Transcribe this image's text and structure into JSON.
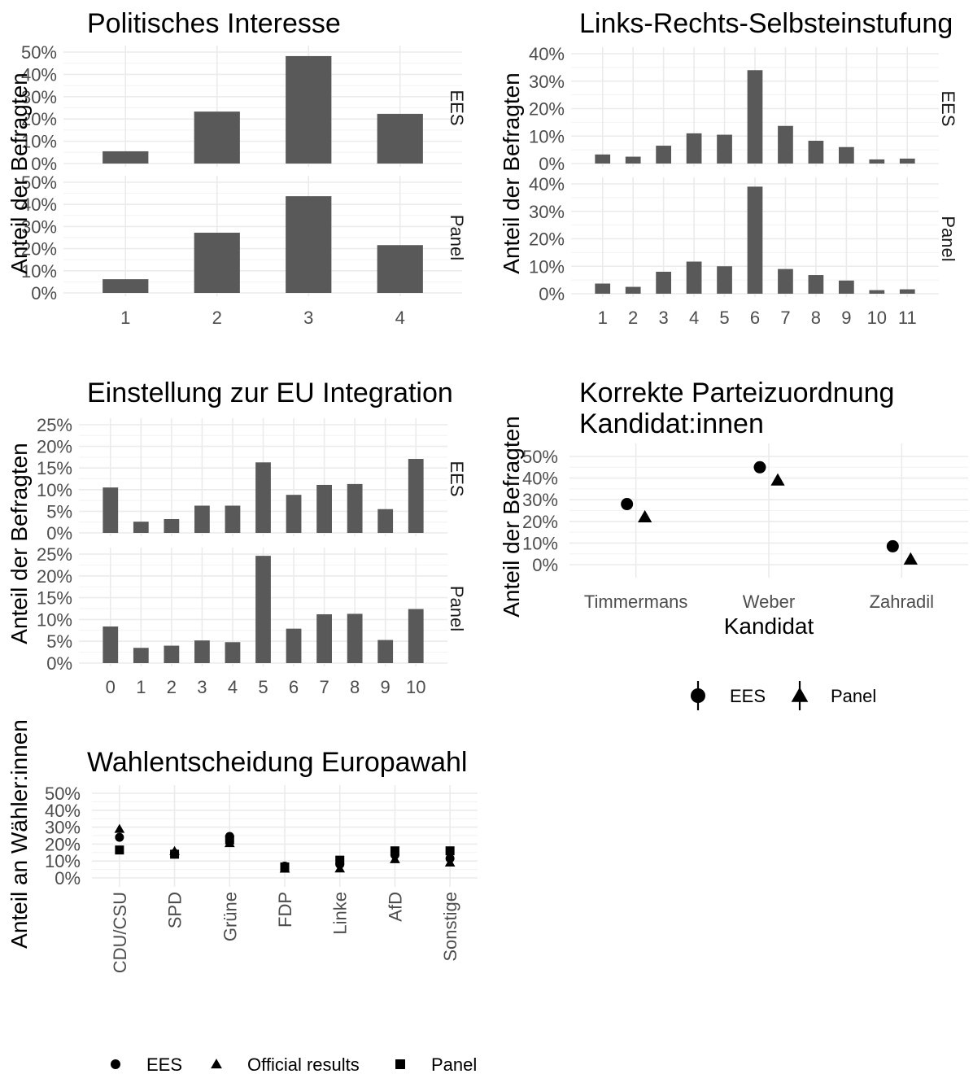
{
  "chart_data": [
    {
      "id": "politisches-interesse",
      "type": "bar",
      "title": "Politisches Interesse",
      "ylabel": "Anteil der Befragten",
      "categories": [
        "1",
        "2",
        "3",
        "4"
      ],
      "ylim": [
        0,
        0.5
      ],
      "yticks": [
        "0%",
        "10%",
        "20%",
        "30%",
        "40%",
        "50%"
      ],
      "facets": [
        {
          "name": "EES",
          "values": [
            0.055,
            0.233,
            0.482,
            0.223
          ]
        },
        {
          "name": "Panel",
          "values": [
            0.062,
            0.272,
            0.437,
            0.216
          ]
        }
      ]
    },
    {
      "id": "links-rechts",
      "type": "bar",
      "title": "Links-Rechts-Selbsteinstufung",
      "ylabel": "Anteil der Befragten",
      "categories": [
        "1",
        "2",
        "3",
        "4",
        "5",
        "6",
        "7",
        "8",
        "9",
        "10",
        "11"
      ],
      "ylim": [
        0,
        0.4
      ],
      "yticks": [
        "0%",
        "10%",
        "20%",
        "30%",
        "40%"
      ],
      "facets": [
        {
          "name": "EES",
          "values": [
            0.033,
            0.025,
            0.065,
            0.11,
            0.105,
            0.34,
            0.137,
            0.083,
            0.06,
            0.015,
            0.018
          ]
        },
        {
          "name": "Panel",
          "values": [
            0.037,
            0.025,
            0.08,
            0.117,
            0.1,
            0.39,
            0.09,
            0.068,
            0.048,
            0.013,
            0.016
          ]
        }
      ]
    },
    {
      "id": "eu-integration",
      "type": "bar",
      "title": "Einstellung zur EU Integration",
      "ylabel": "Anteil der Befragten",
      "categories": [
        "0",
        "1",
        "2",
        "3",
        "4",
        "5",
        "6",
        "7",
        "8",
        "9",
        "10"
      ],
      "ylim": [
        0,
        0.25
      ],
      "yticks": [
        "0%",
        "5%",
        "10%",
        "15%",
        "20%",
        "25%"
      ],
      "facets": [
        {
          "name": "EES",
          "values": [
            0.105,
            0.026,
            0.032,
            0.063,
            0.063,
            0.163,
            0.088,
            0.111,
            0.113,
            0.055,
            0.171
          ]
        },
        {
          "name": "Panel",
          "values": [
            0.084,
            0.035,
            0.04,
            0.052,
            0.048,
            0.246,
            0.079,
            0.112,
            0.113,
            0.053,
            0.124
          ]
        }
      ]
    },
    {
      "id": "parteizuordnung",
      "type": "scatter",
      "title": "Korrekte Parteizuordnung\nKandidat:innen",
      "xlabel": "Kandidat",
      "ylabel": "Anteil der Befragten",
      "categories": [
        "Timmermans",
        "Weber",
        "Zahradil"
      ],
      "ylim": [
        0,
        0.5
      ],
      "yticks": [
        "0%",
        "10%",
        "20%",
        "30%",
        "40%",
        "50%"
      ],
      "series": [
        {
          "name": "EES",
          "shape": "circle",
          "values": [
            0.28,
            0.45,
            0.085
          ]
        },
        {
          "name": "Panel",
          "shape": "triangle",
          "values": [
            0.22,
            0.39,
            0.025
          ]
        }
      ],
      "legend": {
        "placement": "bottom",
        "items": [
          "EES",
          "Panel"
        ]
      }
    },
    {
      "id": "wahlentscheidung",
      "type": "scatter",
      "title": "Wahlentscheidung Europawahl",
      "ylabel": "Anteil an Wähler:innen",
      "categories": [
        "CDU/CSU",
        "SPD",
        "Grüne",
        "FDP",
        "Linke",
        "AfD",
        "Sonstige"
      ],
      "ylim": [
        0,
        0.5
      ],
      "yticks": [
        "0%",
        "10%",
        "20%",
        "30%",
        "40%",
        "50%"
      ],
      "series": [
        {
          "name": "EES",
          "shape": "circle",
          "values": [
            0.24,
            0.145,
            0.245,
            0.07,
            0.08,
            0.135,
            0.115
          ]
        },
        {
          "name": "Official results",
          "shape": "triangle",
          "values": [
            0.289,
            0.158,
            0.205,
            0.054,
            0.055,
            0.11,
            0.09
          ]
        },
        {
          "name": "Panel",
          "shape": "square",
          "values": [
            0.165,
            0.14,
            0.225,
            0.065,
            0.105,
            0.16,
            0.16
          ]
        }
      ],
      "legend": {
        "placement": "bottom",
        "items": [
          "EES",
          "Official results",
          "Panel"
        ]
      }
    }
  ]
}
